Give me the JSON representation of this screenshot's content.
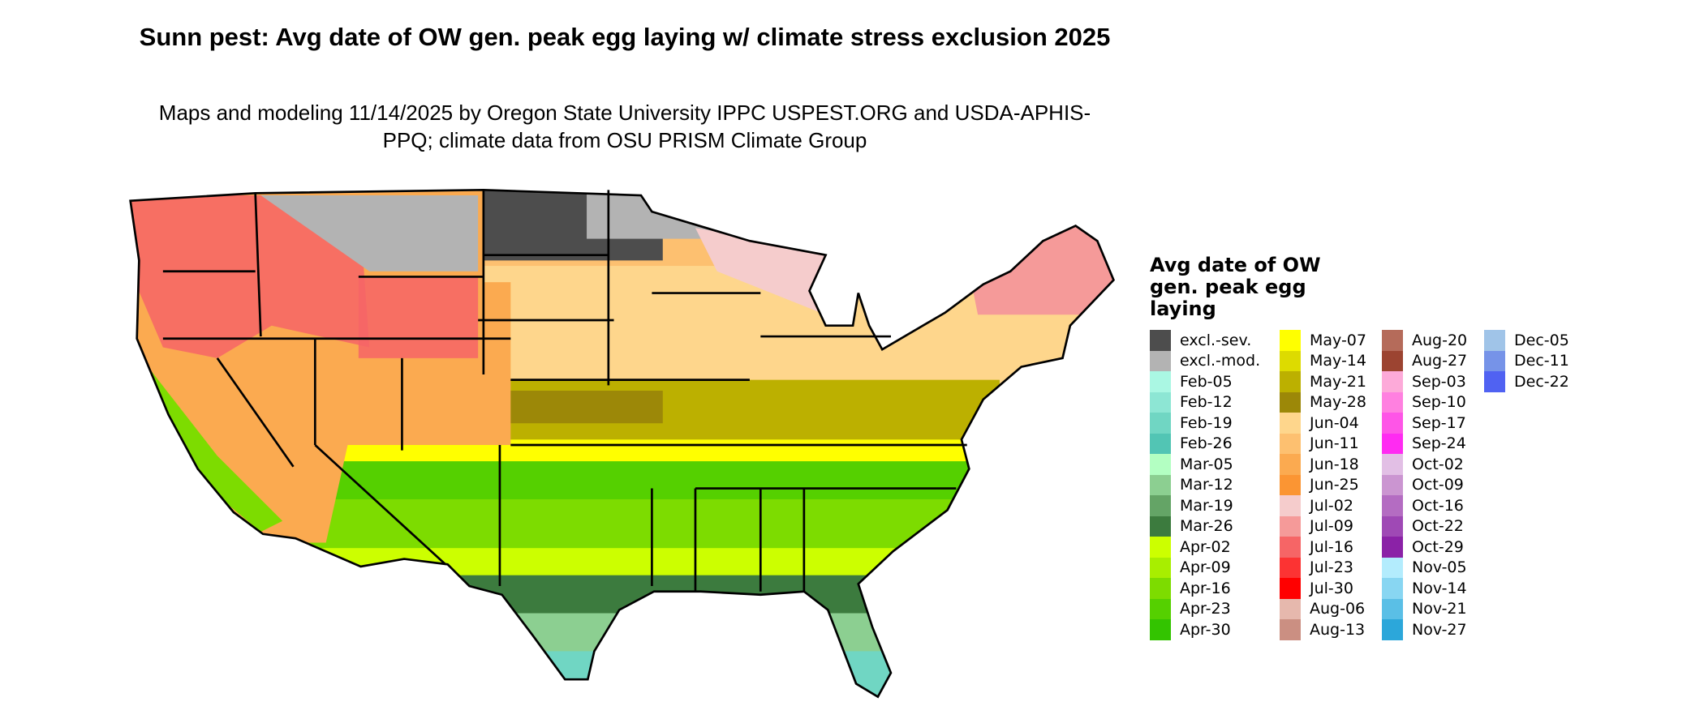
{
  "title": "Sunn pest: Avg date of OW gen. peak egg laying w/ climate stress exclusion 2025",
  "subtitle": "Maps and modeling 11/14/2025 by Oregon State University IPPC USPEST.ORG and USDA-APHIS-PPQ; climate data from OSU PRISM Climate Group",
  "legend": {
    "title": "Avg date of OW gen. peak egg laying",
    "columns": [
      [
        {
          "label": "excl.-sev.",
          "color": "#4d4d4d"
        },
        {
          "label": "excl.-mod.",
          "color": "#b3b3b3"
        },
        {
          "label": "Feb-05",
          "color": "#aaf7e3"
        },
        {
          "label": "Feb-12",
          "color": "#8de6d4"
        },
        {
          "label": "Feb-19",
          "color": "#70d6c3"
        },
        {
          "label": "Feb-26",
          "color": "#52c5b4"
        },
        {
          "label": "Mar-05",
          "color": "#b3ffc2"
        },
        {
          "label": "Mar-12",
          "color": "#8ccf91"
        },
        {
          "label": "Mar-19",
          "color": "#64a466"
        },
        {
          "label": "Mar-26",
          "color": "#3c7b3e"
        },
        {
          "label": "Apr-02",
          "color": "#ccff00"
        },
        {
          "label": "Apr-09",
          "color": "#a8ee00"
        },
        {
          "label": "Apr-16",
          "color": "#7ddc00"
        },
        {
          "label": "Apr-23",
          "color": "#55d000"
        },
        {
          "label": "Apr-30",
          "color": "#33c400"
        }
      ],
      [
        {
          "label": "May-07",
          "color": "#ffff00"
        },
        {
          "label": "May-14",
          "color": "#dddb00"
        },
        {
          "label": "May-21",
          "color": "#bcb000"
        },
        {
          "label": "May-28",
          "color": "#9c8808"
        },
        {
          "label": "Jun-04",
          "color": "#fed68c"
        },
        {
          "label": "Jun-11",
          "color": "#fdc070"
        },
        {
          "label": "Jun-18",
          "color": "#fbaa50"
        },
        {
          "label": "Jun-25",
          "color": "#fb9533"
        },
        {
          "label": "Jul-02",
          "color": "#f5cccc"
        },
        {
          "label": "Jul-09",
          "color": "#f59a99"
        },
        {
          "label": "Jul-16",
          "color": "#f66566"
        },
        {
          "label": "Jul-23",
          "color": "#fc3333"
        },
        {
          "label": "Jul-30",
          "color": "#ff0000"
        },
        {
          "label": "Aug-06",
          "color": "#e6b8ad"
        },
        {
          "label": "Aug-13",
          "color": "#cb8f82"
        }
      ],
      [
        {
          "label": "Aug-20",
          "color": "#b56b5a"
        },
        {
          "label": "Aug-27",
          "color": "#9c4431"
        },
        {
          "label": "Sep-03",
          "color": "#fdaad9"
        },
        {
          "label": "Sep-10",
          "color": "#ff80e0"
        },
        {
          "label": "Sep-17",
          "color": "#fe55e7"
        },
        {
          "label": "Sep-24",
          "color": "#ff2bf2"
        },
        {
          "label": "Oct-02",
          "color": "#e2bfe5"
        },
        {
          "label": "Oct-09",
          "color": "#cb95d1"
        },
        {
          "label": "Oct-16",
          "color": "#b46cc2"
        },
        {
          "label": "Oct-22",
          "color": "#9f49b5"
        },
        {
          "label": "Oct-29",
          "color": "#8b22a7"
        },
        {
          "label": "Nov-05",
          "color": "#b3ecfd"
        },
        {
          "label": "Nov-14",
          "color": "#88d6f2"
        },
        {
          "label": "Nov-21",
          "color": "#5abfe6"
        },
        {
          "label": "Nov-27",
          "color": "#2ca7da"
        }
      ],
      [
        {
          "label": "Dec-05",
          "color": "#a0c4e8"
        },
        {
          "label": "Dec-11",
          "color": "#7693e8"
        },
        {
          "label": "Dec-22",
          "color": "#5062f2"
        }
      ]
    ]
  }
}
